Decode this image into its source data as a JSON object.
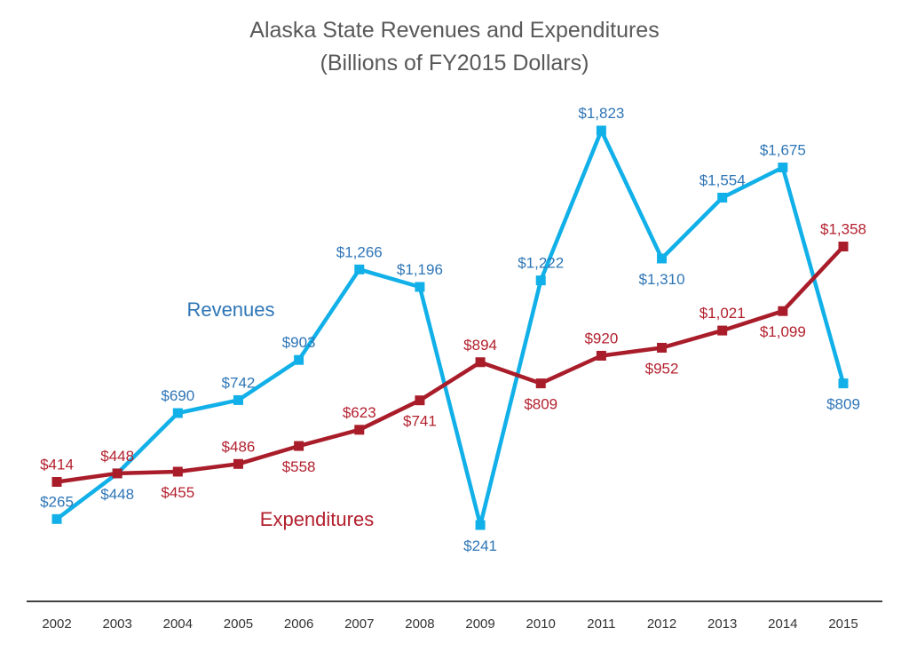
{
  "chart_data": {
    "type": "line",
    "title": "Alaska State Revenues and Expenditures",
    "subtitle": "(Billions of FY2015 Dollars)",
    "xlabel": "",
    "ylabel": "",
    "grid": false,
    "legend": "inline",
    "ylim": [
      0,
      2000
    ],
    "categories": [
      "2002",
      "2003",
      "2004",
      "2005",
      "2006",
      "2007",
      "2008",
      "2009",
      "2010",
      "2011",
      "2012",
      "2013",
      "2014",
      "2015"
    ],
    "series": [
      {
        "name": "Revenues",
        "color": "#12b0e8",
        "label_color": "#2e75b6",
        "values": [
          265,
          448,
          690,
          742,
          903,
          1266,
          1196,
          241,
          1222,
          1823,
          1310,
          1554,
          1675,
          809
        ],
        "labels": [
          "$265",
          "$448",
          "$690",
          "$742",
          "$903",
          "$1,266",
          "$1,196",
          "$241",
          "$1,222",
          "$1,823",
          "$1,310",
          "$1,554",
          "$1,675",
          "$809"
        ],
        "label_pos": [
          "above",
          "below",
          "above",
          "above",
          "above",
          "above",
          "above",
          "below",
          "above",
          "above",
          "below",
          "above",
          "above",
          "below"
        ]
      },
      {
        "name": "Expenditures",
        "color": "#a91d2a",
        "label_color": "#b3202e",
        "values": [
          414,
          448,
          455,
          486,
          558,
          623,
          741,
          894,
          809,
          920,
          952,
          1021,
          1099,
          1358
        ],
        "labels": [
          "$414",
          "$448",
          "$455",
          "$486",
          "$558",
          "$623",
          "$741",
          "$894",
          "$809",
          "$920",
          "$952",
          "$1,021",
          "$1,099",
          "$1,358"
        ],
        "label_pos": [
          "above",
          "above",
          "below",
          "above",
          "below",
          "above",
          "below",
          "above",
          "below",
          "above",
          "below",
          "above",
          "below",
          "above"
        ]
      }
    ]
  }
}
